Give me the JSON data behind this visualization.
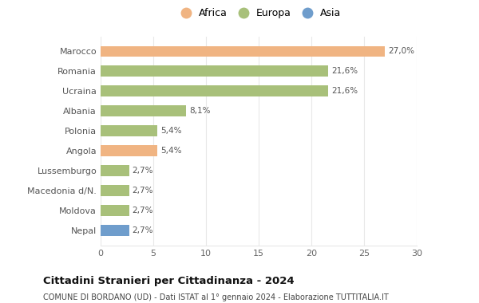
{
  "categories": [
    "Nepal",
    "Moldova",
    "Macedonia d/N.",
    "Lussemburgo",
    "Angola",
    "Polonia",
    "Albania",
    "Ucraina",
    "Romania",
    "Marocco"
  ],
  "values": [
    2.7,
    2.7,
    2.7,
    2.7,
    5.4,
    5.4,
    8.1,
    21.6,
    21.6,
    27.0
  ],
  "colors": [
    "#6f9dcc",
    "#a8c07a",
    "#a8c07a",
    "#a8c07a",
    "#f0b482",
    "#a8c07a",
    "#a8c07a",
    "#a8c07a",
    "#a8c07a",
    "#f0b482"
  ],
  "labels": [
    "2,7%",
    "2,7%",
    "2,7%",
    "2,7%",
    "5,4%",
    "5,4%",
    "8,1%",
    "21,6%",
    "21,6%",
    "27,0%"
  ],
  "legend": [
    {
      "label": "Africa",
      "color": "#f0b482"
    },
    {
      "label": "Europa",
      "color": "#a8c07a"
    },
    {
      "label": "Asia",
      "color": "#6f9dcc"
    }
  ],
  "xlim": [
    0,
    30
  ],
  "xticks": [
    0,
    5,
    10,
    15,
    20,
    25,
    30
  ],
  "title": "Cittadini Stranieri per Cittadinanza - 2024",
  "subtitle": "COMUNE DI BORDANO (UD) - Dati ISTAT al 1° gennaio 2024 - Elaborazione TUTTITALIA.IT",
  "background_color": "#ffffff",
  "grid_color": "#e8e8e8",
  "bar_height": 0.55,
  "label_fontsize": 7.5,
  "ytick_fontsize": 8,
  "xtick_fontsize": 8
}
